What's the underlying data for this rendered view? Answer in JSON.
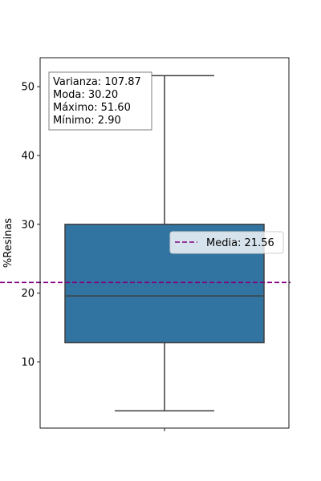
{
  "chart_data": {
    "type": "box",
    "ylabel": "%Resinas",
    "xlabel": "",
    "title": "",
    "ylim": [
      0.4,
      54.2
    ],
    "yticks": [
      10,
      20,
      30,
      40,
      50
    ],
    "box": {
      "whisker_low": 2.9,
      "q1": 12.8,
      "median": 19.6,
      "q3": 30.0,
      "whisker_high": 51.6,
      "color": "#3274a1",
      "line_color": "#3f3f3f"
    },
    "mean_line": {
      "value": 21.56,
      "color": "#800080",
      "label": "Media: 21.56",
      "legend_placement": "center-right"
    },
    "stats_box": {
      "lines": [
        "Varianza: 107.87",
        "Moda: 30.20",
        "Máximo: 51.60",
        "Mínimo: 2.90"
      ],
      "placement": "top-left"
    },
    "grid": false
  }
}
